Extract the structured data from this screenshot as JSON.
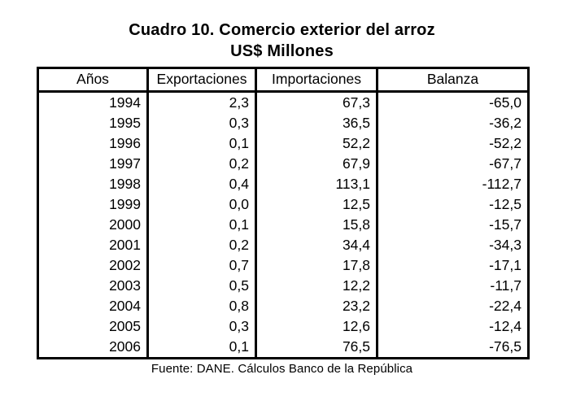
{
  "title": "Cuadro 10. Comercio exterior del arroz",
  "subtitle": "US$ Millones",
  "table": {
    "columns": [
      "Años",
      "Exportaciones",
      "Importaciones",
      "Balanza"
    ],
    "rows": [
      [
        "1994",
        "2,3",
        "67,3",
        "-65,0"
      ],
      [
        "1995",
        "0,3",
        "36,5",
        "-36,2"
      ],
      [
        "1996",
        "0,1",
        "52,2",
        "-52,2"
      ],
      [
        "1997",
        "0,2",
        "67,9",
        "-67,7"
      ],
      [
        "1998",
        "0,4",
        "113,1",
        "-112,7"
      ],
      [
        "1999",
        "0,0",
        "12,5",
        "-12,5"
      ],
      [
        "2000",
        "0,1",
        "15,8",
        "-15,7"
      ],
      [
        "2001",
        "0,2",
        "34,4",
        "-34,3"
      ],
      [
        "2002",
        "0,7",
        "17,8",
        "-17,1"
      ],
      [
        "2003",
        "0,5",
        "12,2",
        "-11,7"
      ],
      [
        "2004",
        "0,8",
        "23,2",
        "-22,4"
      ],
      [
        "2005",
        "0,3",
        "12,6",
        "-12,4"
      ],
      [
        "2006",
        "0,1",
        "76,5",
        "-76,5"
      ]
    ]
  },
  "source": "Fuente: DANE. Cálculos Banco de la República",
  "colors": {
    "text": "#000000",
    "background": "#ffffff",
    "border": "#000000"
  },
  "chart_data": {
    "type": "table",
    "title": "Cuadro 10. Comercio exterior del arroz",
    "subtitle": "US$ Millones",
    "columns": [
      "Años",
      "Exportaciones",
      "Importaciones",
      "Balanza"
    ],
    "categories": [
      1994,
      1995,
      1996,
      1997,
      1998,
      1999,
      2000,
      2001,
      2002,
      2003,
      2004,
      2005,
      2006
    ],
    "series": [
      {
        "name": "Exportaciones",
        "values": [
          2.3,
          0.3,
          0.1,
          0.2,
          0.4,
          0.0,
          0.1,
          0.2,
          0.7,
          0.5,
          0.8,
          0.3,
          0.1
        ]
      },
      {
        "name": "Importaciones",
        "values": [
          67.3,
          36.5,
          52.2,
          67.9,
          113.1,
          12.5,
          15.8,
          34.4,
          17.8,
          12.2,
          23.2,
          12.6,
          76.5
        ]
      },
      {
        "name": "Balanza",
        "values": [
          -65.0,
          -36.2,
          -52.2,
          -67.7,
          -112.7,
          -12.5,
          -15.7,
          -34.3,
          -17.1,
          -11.7,
          -22.4,
          -12.4,
          -76.5
        ]
      }
    ],
    "source": "Fuente: DANE. Cálculos Banco de la República"
  }
}
